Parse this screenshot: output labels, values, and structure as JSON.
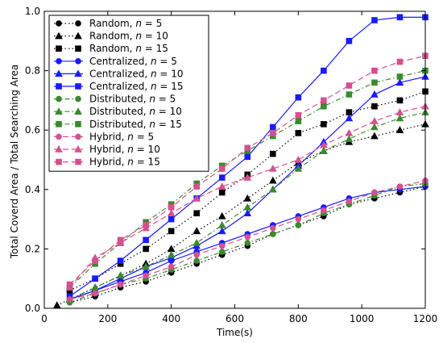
{
  "chart_data": {
    "type": "line",
    "xlabel": "Time(s)",
    "ylabel": "Total Coverd Area / Total Searching Area",
    "xlim": [
      0,
      1200
    ],
    "ylim": [
      0,
      1.0
    ],
    "xticks": [
      0,
      200,
      400,
      600,
      800,
      1000,
      1200
    ],
    "xtick_labels": [
      "0",
      "200",
      "400",
      "600",
      "800",
      "1000",
      "1200"
    ],
    "yticks": [
      0,
      0.2,
      0.4,
      0.6,
      0.8,
      1.0
    ],
    "ytick_labels": [
      "0.0",
      "0.2",
      "0.4",
      "0.6",
      "0.8",
      "1.0"
    ],
    "grid": false,
    "legend_placement": "top-left",
    "series": [
      {
        "label_prefix": "Random, ",
        "n_label": "n",
        "n_value": " = 5",
        "color": "#000000",
        "marker": "circle",
        "dash": "dotted",
        "x": [
          80,
          160,
          240,
          320,
          400,
          480,
          560,
          640,
          720,
          800,
          880,
          960,
          1040,
          1120,
          1200
        ],
        "y": [
          0.02,
          0.04,
          0.07,
          0.09,
          0.12,
          0.15,
          0.18,
          0.21,
          0.25,
          0.28,
          0.31,
          0.35,
          0.37,
          0.39,
          0.41
        ]
      },
      {
        "label_prefix": "Random, ",
        "n_label": "n",
        "n_value": " = 10",
        "color": "#000000",
        "marker": "triangle",
        "dash": "dotted",
        "x": [
          40,
          80,
          160,
          240,
          320,
          400,
          480,
          560,
          640,
          720,
          800,
          880,
          960,
          1040,
          1120,
          1200
        ],
        "y": [
          0.01,
          0.03,
          0.07,
          0.11,
          0.15,
          0.2,
          0.26,
          0.31,
          0.37,
          0.43,
          0.49,
          0.53,
          0.56,
          0.58,
          0.6,
          0.62
        ]
      },
      {
        "label_prefix": "Random, ",
        "n_label": "n",
        "n_value": " = 15",
        "color": "#000000",
        "marker": "square",
        "dash": "dotted",
        "x": [
          80,
          160,
          240,
          320,
          400,
          480,
          560,
          640,
          720,
          800,
          880,
          960,
          1040,
          1120,
          1200
        ],
        "y": [
          0.06,
          0.1,
          0.15,
          0.2,
          0.26,
          0.32,
          0.39,
          0.45,
          0.52,
          0.59,
          0.62,
          0.66,
          0.68,
          0.7,
          0.73
        ]
      },
      {
        "label_prefix": "Centralized, ",
        "n_label": "n",
        "n_value": " = 5",
        "color": "#1a1aff",
        "marker": "circle",
        "dash": "solid",
        "x": [
          80,
          160,
          240,
          320,
          400,
          480,
          560,
          640,
          720,
          800,
          880,
          960,
          1040,
          1120,
          1200
        ],
        "y": [
          0.03,
          0.06,
          0.09,
          0.12,
          0.16,
          0.19,
          0.22,
          0.25,
          0.28,
          0.31,
          0.34,
          0.37,
          0.39,
          0.4,
          0.41
        ]
      },
      {
        "label_prefix": "Centralized, ",
        "n_label": "n",
        "n_value": " = 10",
        "color": "#1a1aff",
        "marker": "triangle",
        "dash": "solid",
        "x": [
          80,
          160,
          240,
          320,
          400,
          480,
          560,
          640,
          720,
          800,
          880,
          960,
          1040,
          1120,
          1200
        ],
        "y": [
          0.03,
          0.06,
          0.1,
          0.14,
          0.17,
          0.21,
          0.26,
          0.32,
          0.4,
          0.48,
          0.56,
          0.64,
          0.72,
          0.76,
          0.78
        ]
      },
      {
        "label_prefix": "Centralized, ",
        "n_label": "n",
        "n_value": " = 15",
        "color": "#1a1aff",
        "marker": "square",
        "dash": "solid",
        "x": [
          80,
          160,
          240,
          320,
          400,
          480,
          560,
          640,
          720,
          800,
          880,
          960,
          1040,
          1120,
          1200
        ],
        "y": [
          0.04,
          0.1,
          0.16,
          0.23,
          0.3,
          0.37,
          0.44,
          0.51,
          0.61,
          0.71,
          0.8,
          0.9,
          0.97,
          0.98,
          0.98
        ]
      },
      {
        "label_prefix": "Distributed, ",
        "n_label": "n",
        "n_value": " = 5",
        "color": "#3a8a2e",
        "marker": "circle",
        "dash": "dashdot",
        "x": [
          80,
          160,
          240,
          320,
          400,
          480,
          560,
          640,
          720,
          800,
          880,
          960,
          1040,
          1120,
          1200
        ],
        "y": [
          0.02,
          0.05,
          0.08,
          0.1,
          0.13,
          0.16,
          0.19,
          0.22,
          0.25,
          0.28,
          0.32,
          0.35,
          0.38,
          0.41,
          0.42
        ]
      },
      {
        "label_prefix": "Distributed, ",
        "n_label": "n",
        "n_value": " = 10",
        "color": "#3a8a2e",
        "marker": "triangle",
        "dash": "dashdot",
        "x": [
          80,
          160,
          240,
          320,
          400,
          480,
          560,
          640,
          720,
          800,
          880,
          960,
          1040,
          1120,
          1200
        ],
        "y": [
          0.03,
          0.07,
          0.11,
          0.14,
          0.18,
          0.22,
          0.28,
          0.34,
          0.4,
          0.47,
          0.53,
          0.57,
          0.61,
          0.64,
          0.66
        ]
      },
      {
        "label_prefix": "Distributed, ",
        "n_label": "n",
        "n_value": " = 15",
        "color": "#3a8a2e",
        "marker": "square",
        "dash": "dashdot",
        "x": [
          80,
          160,
          240,
          320,
          400,
          480,
          560,
          640,
          720,
          800,
          880,
          960,
          1040,
          1120,
          1200
        ],
        "y": [
          0.07,
          0.15,
          0.22,
          0.29,
          0.35,
          0.42,
          0.48,
          0.53,
          0.58,
          0.63,
          0.68,
          0.72,
          0.76,
          0.78,
          0.8
        ]
      },
      {
        "label_prefix": "Hybrid, ",
        "n_label": "n",
        "n_value": " = 5",
        "color": "#d4518f",
        "marker": "circle",
        "dash": "dashed",
        "x": [
          80,
          160,
          240,
          320,
          400,
          480,
          560,
          640,
          720,
          800,
          880,
          960,
          1040,
          1120,
          1200
        ],
        "y": [
          0.03,
          0.05,
          0.08,
          0.11,
          0.14,
          0.18,
          0.21,
          0.24,
          0.27,
          0.3,
          0.33,
          0.36,
          0.39,
          0.41,
          0.43
        ]
      },
      {
        "label_prefix": "Hybrid, ",
        "n_label": "n",
        "n_value": " = 10",
        "color": "#d4518f",
        "marker": "triangle",
        "dash": "dashed",
        "x": [
          80,
          160,
          240,
          320,
          400,
          480,
          560,
          640,
          720,
          800,
          880,
          960,
          1040,
          1120,
          1200
        ],
        "y": [
          0.07,
          0.17,
          0.22,
          0.27,
          0.32,
          0.37,
          0.41,
          0.44,
          0.47,
          0.5,
          0.55,
          0.59,
          0.63,
          0.66,
          0.68
        ]
      },
      {
        "label_prefix": "Hybrid, ",
        "n_label": "n",
        "n_value": " = 15",
        "color": "#d4518f",
        "marker": "square",
        "dash": "dashed",
        "x": [
          80,
          160,
          240,
          320,
          400,
          480,
          560,
          640,
          720,
          800,
          880,
          960,
          1040,
          1120,
          1200
        ],
        "y": [
          0.08,
          0.16,
          0.23,
          0.28,
          0.34,
          0.41,
          0.47,
          0.54,
          0.59,
          0.65,
          0.7,
          0.75,
          0.8,
          0.83,
          0.85
        ]
      }
    ]
  }
}
